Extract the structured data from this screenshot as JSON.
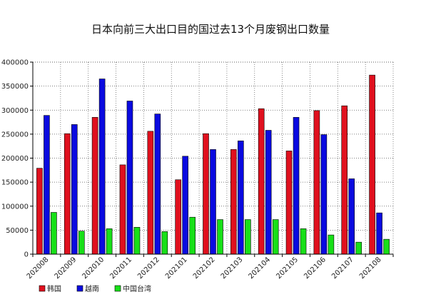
{
  "chart_data": {
    "type": "bar",
    "title": "日本向前三大出口目的国过去13个月废钢出口数量",
    "xlabel": "",
    "ylabel": "",
    "ylim": [
      0,
      400000
    ],
    "yticks": [
      0,
      50000,
      100000,
      150000,
      200000,
      250000,
      300000,
      350000,
      400000
    ],
    "ytick_labels": [
      "0",
      "50000",
      "100000",
      "150000",
      "200000",
      "250000",
      "300000",
      "350000",
      "400000"
    ],
    "grid": true,
    "legend_position": "bottom-left",
    "categories": [
      "202008",
      "202009",
      "202010",
      "202011",
      "202012",
      "202101",
      "202102",
      "202103",
      "202104",
      "202105",
      "202106",
      "202107",
      "202108"
    ],
    "series": [
      {
        "name": "韩国",
        "color": "#e0101e",
        "values": [
          179000,
          251000,
          285000,
          186000,
          256000,
          155000,
          251000,
          218000,
          303000,
          215000,
          299000,
          309000,
          373000
        ]
      },
      {
        "name": "越南",
        "color": "#0a0ae0",
        "values": [
          289000,
          270000,
          365000,
          319000,
          292000,
          204000,
          218000,
          236000,
          258000,
          285000,
          249000,
          157000,
          86000
        ]
      },
      {
        "name": "中国台湾",
        "color": "#18e018",
        "values": [
          87000,
          48000,
          53000,
          56000,
          47000,
          77000,
          72000,
          72000,
          72000,
          53000,
          40000,
          25000,
          31000
        ]
      }
    ]
  }
}
